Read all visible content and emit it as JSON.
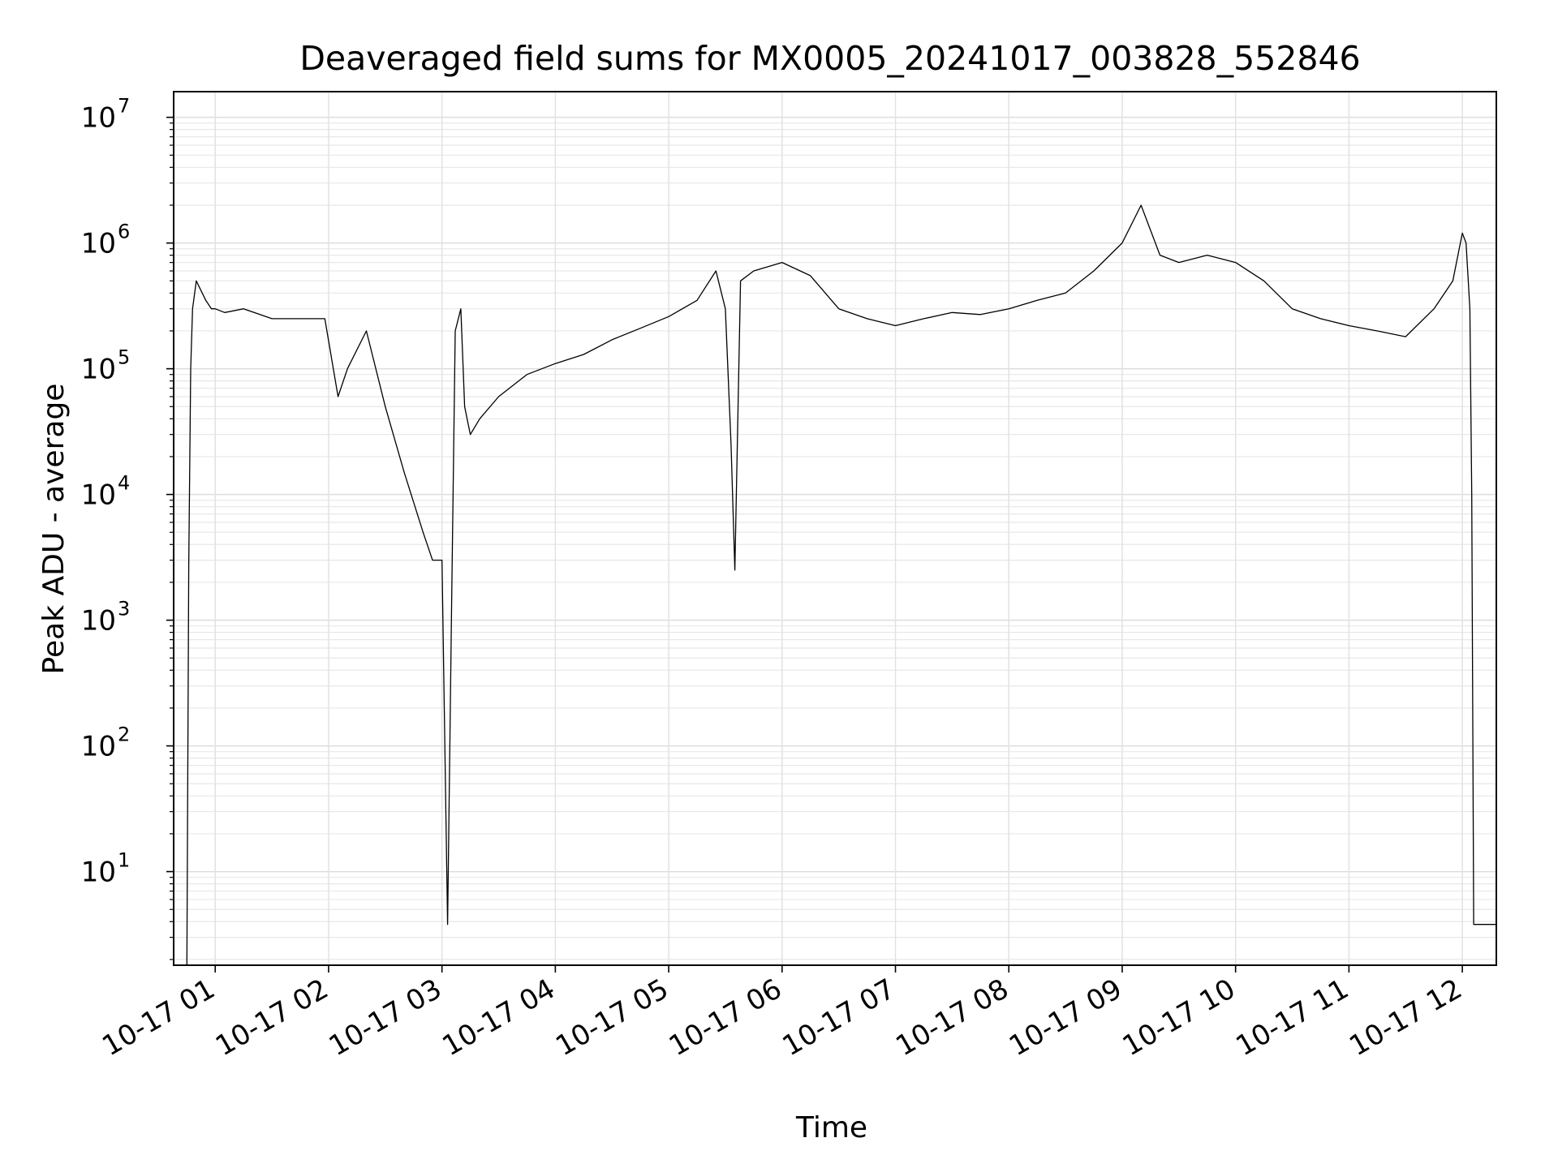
{
  "chart_data": {
    "type": "line",
    "title": "Deaveraged field sums for MX0005_20241017_003828_552846",
    "xlabel": "Time",
    "ylabel": "Peak ADU - average",
    "yscale": "log",
    "ylim": [
      1.8,
      16000000
    ],
    "xlim": [
      "2024-10-17 00:38:00",
      "2024-10-17 12:18:00"
    ],
    "grid": true,
    "line_color": "#000000",
    "x_tick_labels": [
      "10-17 01",
      "10-17 02",
      "10-17 03",
      "10-17 04",
      "10-17 05",
      "10-17 06",
      "10-17 07",
      "10-17 08",
      "10-17 09",
      "10-17 10",
      "10-17 11",
      "10-17 12"
    ],
    "x_ticks": [
      "2024-10-17 01:00",
      "2024-10-17 02:00",
      "2024-10-17 03:00",
      "2024-10-17 04:00",
      "2024-10-17 05:00",
      "2024-10-17 06:00",
      "2024-10-17 07:00",
      "2024-10-17 08:00",
      "2024-10-17 09:00",
      "2024-10-17 10:00",
      "2024-10-17 11:00",
      "2024-10-17 12:00"
    ],
    "y_tick_values": [
      10,
      100,
      1000,
      10000,
      100000,
      1000000,
      10000000
    ],
    "y_tick_labels": [
      {
        "base": "10",
        "exp": "1"
      },
      {
        "base": "10",
        "exp": "2"
      },
      {
        "base": "10",
        "exp": "3"
      },
      {
        "base": "10",
        "exp": "4"
      },
      {
        "base": "10",
        "exp": "5"
      },
      {
        "base": "10",
        "exp": "6"
      },
      {
        "base": "10",
        "exp": "7"
      }
    ],
    "series": [
      {
        "x": [
          "2024-10-17 00:45",
          "2024-10-17 00:46",
          "2024-10-17 00:47",
          "2024-10-17 00:48",
          "2024-10-17 00:50",
          "2024-10-17 00:55",
          "2024-10-17 00:58",
          "2024-10-17 01:00",
          "2024-10-17 01:05",
          "2024-10-17 01:15",
          "2024-10-17 01:30",
          "2024-10-17 01:45",
          "2024-10-17 01:58",
          "2024-10-17 02:05",
          "2024-10-17 02:10",
          "2024-10-17 02:20",
          "2024-10-17 02:30",
          "2024-10-17 02:40",
          "2024-10-17 02:50",
          "2024-10-17 02:55",
          "2024-10-17 03:00",
          "2024-10-17 03:03",
          "2024-10-17 03:05",
          "2024-10-17 03:07",
          "2024-10-17 03:10",
          "2024-10-17 03:12",
          "2024-10-17 03:15",
          "2024-10-17 03:20",
          "2024-10-17 03:30",
          "2024-10-17 03:45",
          "2024-10-17 04:00",
          "2024-10-17 04:15",
          "2024-10-17 04:30",
          "2024-10-17 04:45",
          "2024-10-17 05:00",
          "2024-10-17 05:15",
          "2024-10-17 05:25",
          "2024-10-17 05:30",
          "2024-10-17 05:33",
          "2024-10-17 05:35",
          "2024-10-17 05:38",
          "2024-10-17 05:45",
          "2024-10-17 06:00",
          "2024-10-17 06:15",
          "2024-10-17 06:30",
          "2024-10-17 06:45",
          "2024-10-17 07:00",
          "2024-10-17 07:15",
          "2024-10-17 07:30",
          "2024-10-17 07:45",
          "2024-10-17 08:00",
          "2024-10-17 08:15",
          "2024-10-17 08:30",
          "2024-10-17 08:45",
          "2024-10-17 09:00",
          "2024-10-17 09:10",
          "2024-10-17 09:20",
          "2024-10-17 09:30",
          "2024-10-17 09:45",
          "2024-10-17 10:00",
          "2024-10-17 10:15",
          "2024-10-17 10:30",
          "2024-10-17 10:45",
          "2024-10-17 11:00",
          "2024-10-17 11:15",
          "2024-10-17 11:30",
          "2024-10-17 11:45",
          "2024-10-17 11:55",
          "2024-10-17 12:00",
          "2024-10-17 12:02",
          "2024-10-17 12:04",
          "2024-10-17 12:05",
          "2024-10-17 12:06",
          "2024-10-17 12:18"
        ],
        "y": [
          1.8,
          2700,
          100000,
          300000,
          500000,
          350000,
          300000,
          300000,
          280000,
          300000,
          250000,
          250000,
          250000,
          60000,
          100000,
          200000,
          50000,
          15000,
          5000,
          3000,
          3000,
          3.8,
          1000,
          200000,
          300000,
          50000,
          30000,
          40000,
          60000,
          90000,
          110000,
          130000,
          170000,
          210000,
          260000,
          350000,
          600000,
          300000,
          25000,
          2500,
          500000,
          600000,
          700000,
          550000,
          300000,
          250000,
          220000,
          250000,
          280000,
          270000,
          300000,
          350000,
          400000,
          600000,
          1000000,
          2000000,
          800000,
          700000,
          800000,
          700000,
          500000,
          300000,
          250000,
          220000,
          200000,
          180000,
          300000,
          500000,
          1200000,
          1000000,
          300000,
          10000,
          3.8,
          3.8
        ]
      }
    ]
  }
}
